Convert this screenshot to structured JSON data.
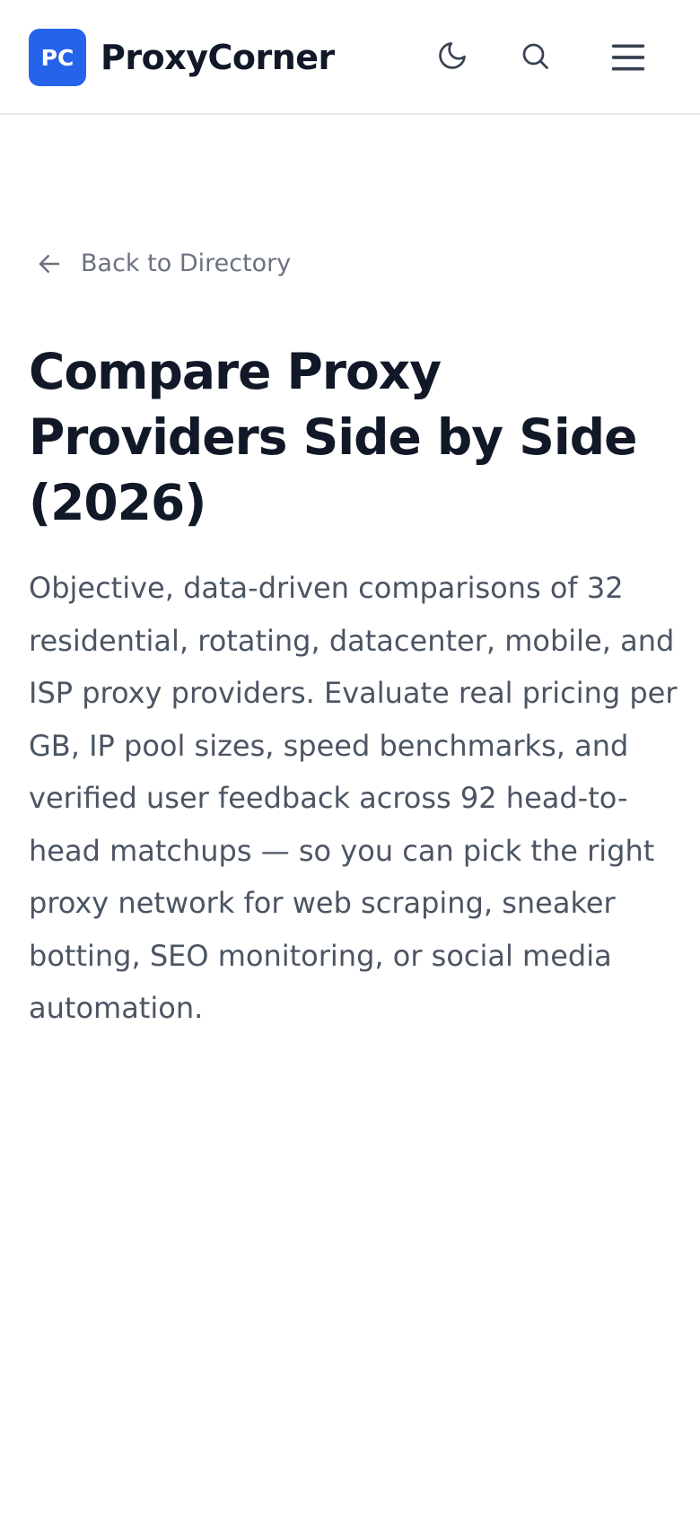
{
  "header": {
    "logo": "PC",
    "brand": "ProxyCorner"
  },
  "back_link": "Back to Directory",
  "title": "Compare Proxy Providers Side by Side (2026)",
  "description": "Objective, data-driven comparisons of 32 residential, rotating, datacenter, mobile, and ISP proxy providers. Evaluate real pricing per GB, IP pool sizes, speed benchmarks, and verified user feedback across 92 head-to-head matchups — so you can pick the right proxy network for web scraping, sneaker botting, SEO monitoring, or social media automation."
}
